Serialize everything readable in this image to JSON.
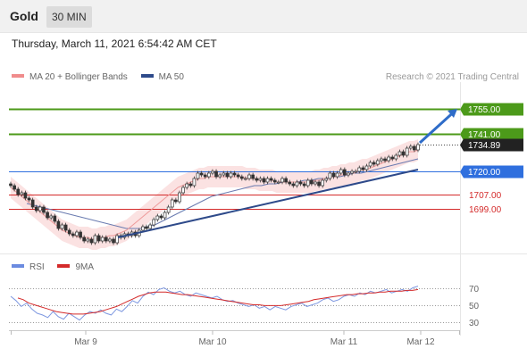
{
  "header": {
    "symbol": "Gold",
    "timeframe": "30 MIN"
  },
  "datetime": "Thursday, March 11, 2021 6:54:42 AM CET",
  "legend": {
    "ma20_label": "MA 20 + Bollinger Bands",
    "ma20_color": "#f08c8c",
    "ma50_label": "MA 50",
    "ma50_color": "#2e4a8a"
  },
  "credit": "Research © 2021 Trading Central",
  "rsi_legend": {
    "rsi_label": "RSI",
    "rsi_color": "#6b8be0",
    "ma_label": "9MA",
    "ma_color": "#d42a2a"
  },
  "chart_data": {
    "type": "candlestick",
    "instrument": "Gold",
    "timeframe": "30 MIN",
    "x_ticks": [
      "Mar 9",
      "Mar 10",
      "Mar 11",
      "Mar 12"
    ],
    "ylim": [
      1675,
      1770
    ],
    "levels": [
      {
        "label": "1755.00",
        "value": 1755.0,
        "role": "target",
        "color": "#4c9a1a"
      },
      {
        "label": "1741.00",
        "value": 1741.0,
        "role": "resistance",
        "color": "#4c9a1a"
      },
      {
        "label": "1734.89",
        "value": 1734.89,
        "role": "last",
        "color": "#222222"
      },
      {
        "label": "1720.00",
        "value": 1720.0,
        "role": "pivot",
        "color": "#2f6fde"
      },
      {
        "label": "1707.00",
        "value": 1707.0,
        "role": "support",
        "color": "#d42a2a"
      },
      {
        "label": "1699.00",
        "value": 1699.0,
        "role": "support",
        "color": "#d42a2a"
      }
    ],
    "close_series": [
      1712,
      1710,
      1707,
      1708,
      1705,
      1704,
      1700,
      1698,
      1700,
      1697,
      1694,
      1695,
      1692,
      1688,
      1690,
      1687,
      1685,
      1684,
      1686,
      1683,
      1681,
      1682,
      1680,
      1684,
      1681,
      1683,
      1681,
      1682,
      1680,
      1684,
      1683,
      1685,
      1684,
      1686,
      1684,
      1687,
      1689,
      1688,
      1690,
      1693,
      1695,
      1694,
      1697,
      1700,
      1704,
      1703,
      1708,
      1711,
      1713,
      1712,
      1716,
      1719,
      1718,
      1717,
      1719,
      1720,
      1717,
      1718,
      1719,
      1717,
      1719,
      1718,
      1717,
      1716,
      1716,
      1718,
      1716,
      1715,
      1716,
      1714,
      1716,
      1715,
      1714,
      1714,
      1716,
      1714,
      1713,
      1712,
      1714,
      1713,
      1712,
      1715,
      1713,
      1714,
      1712,
      1715,
      1716,
      1719,
      1717,
      1719,
      1721,
      1718,
      1719,
      1720,
      1720,
      1722,
      1721,
      1723,
      1725,
      1724,
      1726,
      1727,
      1726,
      1728,
      1727,
      1729,
      1731,
      1729,
      1733,
      1734,
      1732,
      1735
    ],
    "ma20_series": [
      1711,
      1709,
      1707,
      1705,
      1703,
      1701,
      1699,
      1697,
      1695,
      1693,
      1691,
      1689,
      1687,
      1686,
      1685,
      1684,
      1683,
      1683,
      1683,
      1682,
      1682,
      1683,
      1683,
      1684,
      1684,
      1685,
      1686,
      1687,
      1689,
      1691,
      1693,
      1695,
      1697,
      1699,
      1701,
      1703,
      1705,
      1707,
      1709,
      1711,
      1712,
      1713,
      1714,
      1715,
      1716,
      1716,
      1717,
      1717,
      1717,
      1717,
      1717,
      1717,
      1717,
      1717,
      1717,
      1716,
      1716,
      1716,
      1715,
      1715,
      1715,
      1715,
      1714,
      1714,
      1714,
      1714,
      1714,
      1714,
      1714,
      1714,
      1714,
      1715,
      1715,
      1716,
      1716,
      1717,
      1717,
      1718,
      1718,
      1719,
      1719,
      1720,
      1721,
      1721,
      1722,
      1723,
      1724,
      1725,
      1726,
      1727,
      1728,
      1729,
      1730,
      1731,
      1731,
      1732
    ],
    "ma50_series": [
      1702,
      1701,
      1700,
      1699,
      1698,
      1697,
      1696,
      1695,
      1694,
      1693,
      1692,
      1691,
      1690,
      1689,
      1688,
      1688,
      1688,
      1689,
      1690,
      1692,
      1694,
      1696,
      1698,
      1700,
      1702,
      1704,
      1706,
      1707,
      1708,
      1709,
      1710,
      1711,
      1712,
      1712,
      1713,
      1713,
      1714,
      1714,
      1714,
      1715,
      1715,
      1716,
      1716,
      1717,
      1717,
      1718,
      1719,
      1719,
      1720,
      1721,
      1722,
      1723,
      1724,
      1725,
      1726,
      1727
    ],
    "trendline": {
      "start": 1683,
      "end": 1721
    },
    "forecast_arrow": {
      "from": 1736,
      "to": 1755
    },
    "rsi": {
      "levels": [
        70,
        50,
        30
      ],
      "ylim": [
        20,
        80
      ],
      "rsi_series": [
        60,
        55,
        48,
        52,
        45,
        40,
        38,
        35,
        42,
        36,
        33,
        40,
        36,
        32,
        38,
        42,
        40,
        44,
        40,
        38,
        45,
        42,
        48,
        55,
        52,
        60,
        65,
        62,
        68,
        70,
        66,
        64,
        66,
        62,
        60,
        64,
        62,
        60,
        58,
        60,
        56,
        54,
        55,
        52,
        50,
        48,
        50,
        46,
        48,
        44,
        48,
        46,
        44,
        48,
        50,
        52,
        48,
        50,
        52,
        56,
        58,
        54,
        56,
        60,
        62,
        60,
        64,
        62,
        66,
        64,
        66,
        68,
        64,
        66,
        68,
        66,
        70,
        72
      ],
      "ma_series": [
        58,
        56,
        52,
        50,
        48,
        46,
        44,
        42,
        41,
        40,
        39,
        39,
        39,
        40,
        41,
        42,
        44,
        46,
        48,
        51,
        54,
        57,
        60,
        62,
        64,
        65,
        65,
        65,
        64,
        63,
        62,
        62,
        61,
        60,
        59,
        58,
        57,
        56,
        55,
        54,
        53,
        52,
        51,
        50,
        50,
        49,
        49,
        49,
        49,
        50,
        51,
        52,
        53,
        54,
        56,
        57,
        58,
        59,
        60,
        61,
        62,
        62,
        63,
        63,
        64,
        64,
        65,
        65,
        66,
        66,
        66,
        67,
        67,
        68
      ]
    }
  }
}
